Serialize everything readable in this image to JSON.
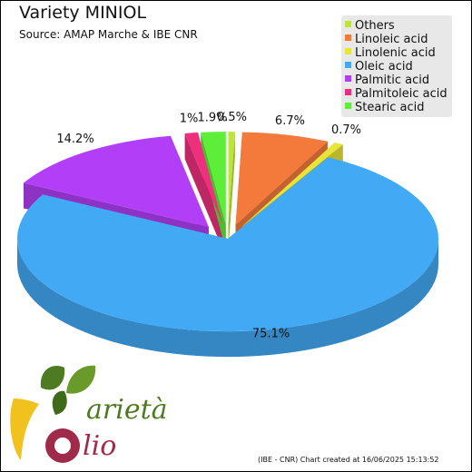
{
  "title": "Variety MINIOL",
  "subtitle": "Source: AMAP Marche & IBE CNR",
  "footer": "(IBE - CNR) Chart created at 16/06/2025 15:13:52",
  "logo": {
    "word1": "arietà",
    "word2": "lio"
  },
  "legend_placement": "top-right",
  "chart_data": {
    "type": "pie",
    "title": "Variety MINIOL",
    "subtitle": "Source: AMAP Marche & IBE CNR",
    "slices": [
      {
        "name": "Others",
        "value": 0.5,
        "label": "0.5%",
        "color": "#bde33d"
      },
      {
        "name": "Linoleic acid",
        "value": 6.7,
        "label": "6.7%",
        "color": "#f47a3c"
      },
      {
        "name": "Linolenic acid",
        "value": 0.7,
        "label": "0.7%",
        "color": "#e9e43a"
      },
      {
        "name": "Oleic acid",
        "value": 75.1,
        "label": "75.1%",
        "color": "#42a9f4"
      },
      {
        "name": "Palmitic acid",
        "value": 14.2,
        "label": "14.2%",
        "color": "#b23ff7"
      },
      {
        "name": "Palmitoleic acid",
        "value": 1.0,
        "label": "1%",
        "color": "#ee2f7d"
      },
      {
        "name": "Stearic acid",
        "value": 1.9,
        "label": "1.9%",
        "color": "#5eee3a"
      }
    ]
  }
}
